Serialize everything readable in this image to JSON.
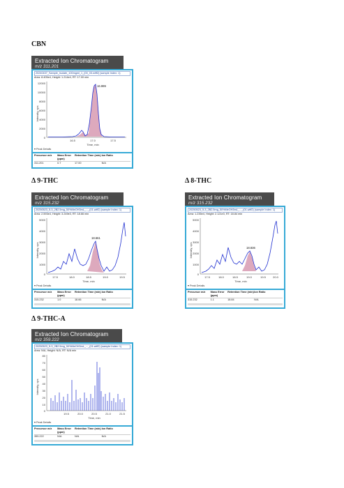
{
  "panels": [
    {
      "label": "CBN",
      "header_title": "Extracted Ion Chromatogram",
      "mz": "m/z 311.201",
      "file": "20240437_Sample_Isolate_100mgml_1_(00_03.wiff2) (sample Index: 1)",
      "area_line": "Area: 8.405e4, Height: 1.214e4, RT: 17.00 min",
      "peak_label": "16.999",
      "y_axis_label": "Intensity, cps",
      "x_axis_label": "Time, min",
      "y_ticks": [
        "12000",
        "10000",
        "8000",
        "6000",
        "4000",
        "2000",
        "0"
      ],
      "x_ticks": [
        "16.5",
        "17.0",
        "17.5"
      ],
      "peak_details": "Peak Details",
      "table_headers": [
        "Precursor m/z",
        "Mass Error (ppm)",
        "Retention Time (min)",
        "Ion Ratio"
      ],
      "table_values": [
        "311.201",
        "0.7",
        "17.00",
        "N/A"
      ]
    },
    {
      "label": "Δ 9-THC",
      "header_title": "Extracted Ion Chromatogram",
      "mz": "m/z 315.232",
      "file": "20250523_5-3_2B2.5mg_50%MeOH3mL_..._(01.wiff2) (sample Index: 1)",
      "area_line": "Area: 2.593e4, Height: 3.249e3, RT: 18.66 min",
      "peak_label": "18.661",
      "y_axis_label": "Intensity, cps",
      "x_axis_label": "Time, min",
      "y_ticks": [
        "5000",
        "4000",
        "3000",
        "2000",
        "1000",
        "0"
      ],
      "x_ticks": [
        "17.5",
        "18.0",
        "18.5",
        "19.0",
        "19.5"
      ],
      "peak_details": "Peak Details",
      "table_headers": [
        "Precursor m/z",
        "Mass Error (ppm)",
        "Retention Time (min)",
        "Ion Ratio"
      ],
      "table_values": [
        "315.232",
        "1.0",
        "18.66",
        "N/A"
      ]
    },
    {
      "label": "Δ 8-THC",
      "header_title": "Extracted Ion Chromatogram",
      "mz": "m/z 315.232",
      "file": "20250523_5-3_2B2.5mg_50%MeOH3mL_..._(01.wiff2) (sample Index: 1)",
      "area_line": "Area: 1.235e4, Height: 2.121e3, RT: 18.84 min",
      "peak_label": "18.836",
      "y_axis_label": "Intensity, cps",
      "x_axis_label": "Time, min",
      "y_ticks": [
        "5000",
        "4000",
        "3000",
        "2000",
        "1000",
        "0"
      ],
      "x_ticks": [
        "17.5",
        "18.0",
        "18.5",
        "19.0",
        "19.5",
        "20.0"
      ],
      "peak_details": "Peak Details",
      "table_headers": [
        "Precursor m/z",
        "Mass Error (ppm)",
        "Retention Time (min)",
        "Ion Ratio"
      ],
      "table_values": [
        "315.232",
        "1.1",
        "18.84",
        "N/A"
      ]
    },
    {
      "label": "Δ 9-THC-A",
      "header_title": "Extracted Ion Chromatogram",
      "mz": "m/z 359.222",
      "file": "20250523_5-3_2B2.5mg_50%MeOH3mL_..._(01.wiff2) (sample Index: 1)",
      "area_line": "Area: N/A, Height: N/A, RT: N/A min",
      "peak_label": "",
      "y_axis_label": "Intensity, cps",
      "x_axis_label": "Time, min",
      "y_ticks": [
        "80",
        "70",
        "60",
        "50",
        "40",
        "30",
        "20",
        "10",
        "0"
      ],
      "x_ticks": [
        "19.5",
        "20.0",
        "20.5",
        "21.0",
        "21.5"
      ],
      "peak_details": "Peak Details",
      "table_headers": [
        "Precursor m/z",
        "Mass Error (ppm)",
        "Retention Time (min)",
        "Ion Ratio"
      ],
      "table_values": [
        "359.222",
        "N/A",
        "N/A",
        "N/A"
      ]
    }
  ],
  "colors": {
    "trace": "#1f2fd0",
    "fill": "#d79ab2",
    "frame": "#35a9d6",
    "header": "#4a4a4a"
  }
}
